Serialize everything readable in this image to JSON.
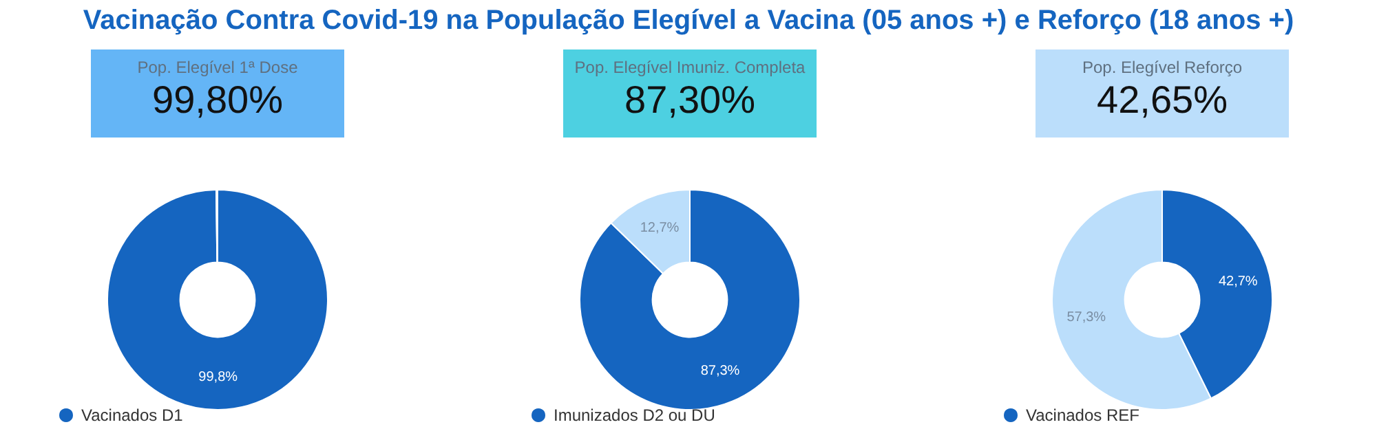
{
  "chart_data": [
    {
      "type": "other",
      "title": "Vacinação Contra Covid-19 na População Elegível a Vacina (05 anos +) e Reforço (18 anos +)"
    },
    {
      "type": "donut",
      "title": "Pop. Elegível 1ª Dose",
      "subtitle": "99,80%",
      "categories": [
        "Vacinados D1",
        null
      ],
      "values": [
        99.8,
        0.2
      ],
      "colors": [
        "#1565c0",
        "#bbdefb"
      ],
      "value_labels": [
        "99,8%",
        null
      ],
      "legend": "bottom left"
    },
    {
      "type": "donut",
      "title": "Pop. Elegível Imuniz. Completa",
      "subtitle": "87,30%",
      "categories": [
        "Imunizados D2 ou DU",
        null
      ],
      "values": [
        87.3,
        12.7
      ],
      "colors": [
        "#1565c0",
        "#bbdefb"
      ],
      "value_labels": [
        "87,3%",
        "12,7%"
      ],
      "legend": "bottom left"
    },
    {
      "type": "donut",
      "title": "Pop. Elegível Reforço",
      "subtitle": "42,65%",
      "categories": [
        "Vacinados REF",
        null
      ],
      "values": [
        42.7,
        57.3
      ],
      "colors": [
        "#1565c0",
        "#bbdefb"
      ],
      "value_labels": [
        "42,7%",
        "57,3%"
      ],
      "legend": "bottom left"
    }
  ]
}
